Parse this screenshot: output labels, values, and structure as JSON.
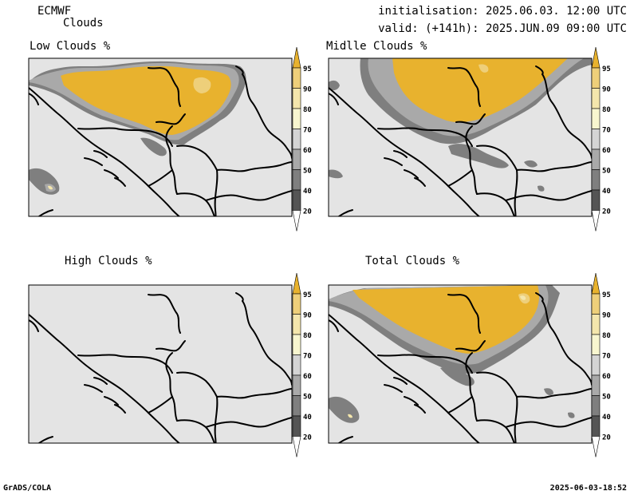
{
  "header": {
    "model": "ECMWF",
    "product": "Clouds",
    "init": "initialisation: 2025.06.03. 12:00 UTC",
    "valid": "valid: (+141h): 2025.JUN.09 09:00 UTC"
  },
  "panels": [
    {
      "title": "Low Clouds %",
      "coverage": "low"
    },
    {
      "title": "Midlle Clouds %",
      "coverage": "mid"
    },
    {
      "title": "High Clouds %",
      "coverage": "none"
    },
    {
      "title": "Total Clouds %",
      "coverage": "total"
    }
  ],
  "colorbar": {
    "labels": [
      "95",
      "90",
      "80",
      "70",
      "60",
      "50",
      "40",
      "20"
    ],
    "colors": {
      "c95": "#e8b22e",
      "c90": "#eecf7a",
      "c80": "#f4e6ac",
      "c70": "#f8f6cf",
      "c60": "#d4d4d4",
      "c50": "#a9a9a9",
      "c40": "#7f7f7f",
      "c20": "#555555",
      "ground": "#e4e4e4"
    }
  },
  "footer": {
    "left": "GrADS/COLA",
    "right": "2025-06-03-18:52"
  }
}
